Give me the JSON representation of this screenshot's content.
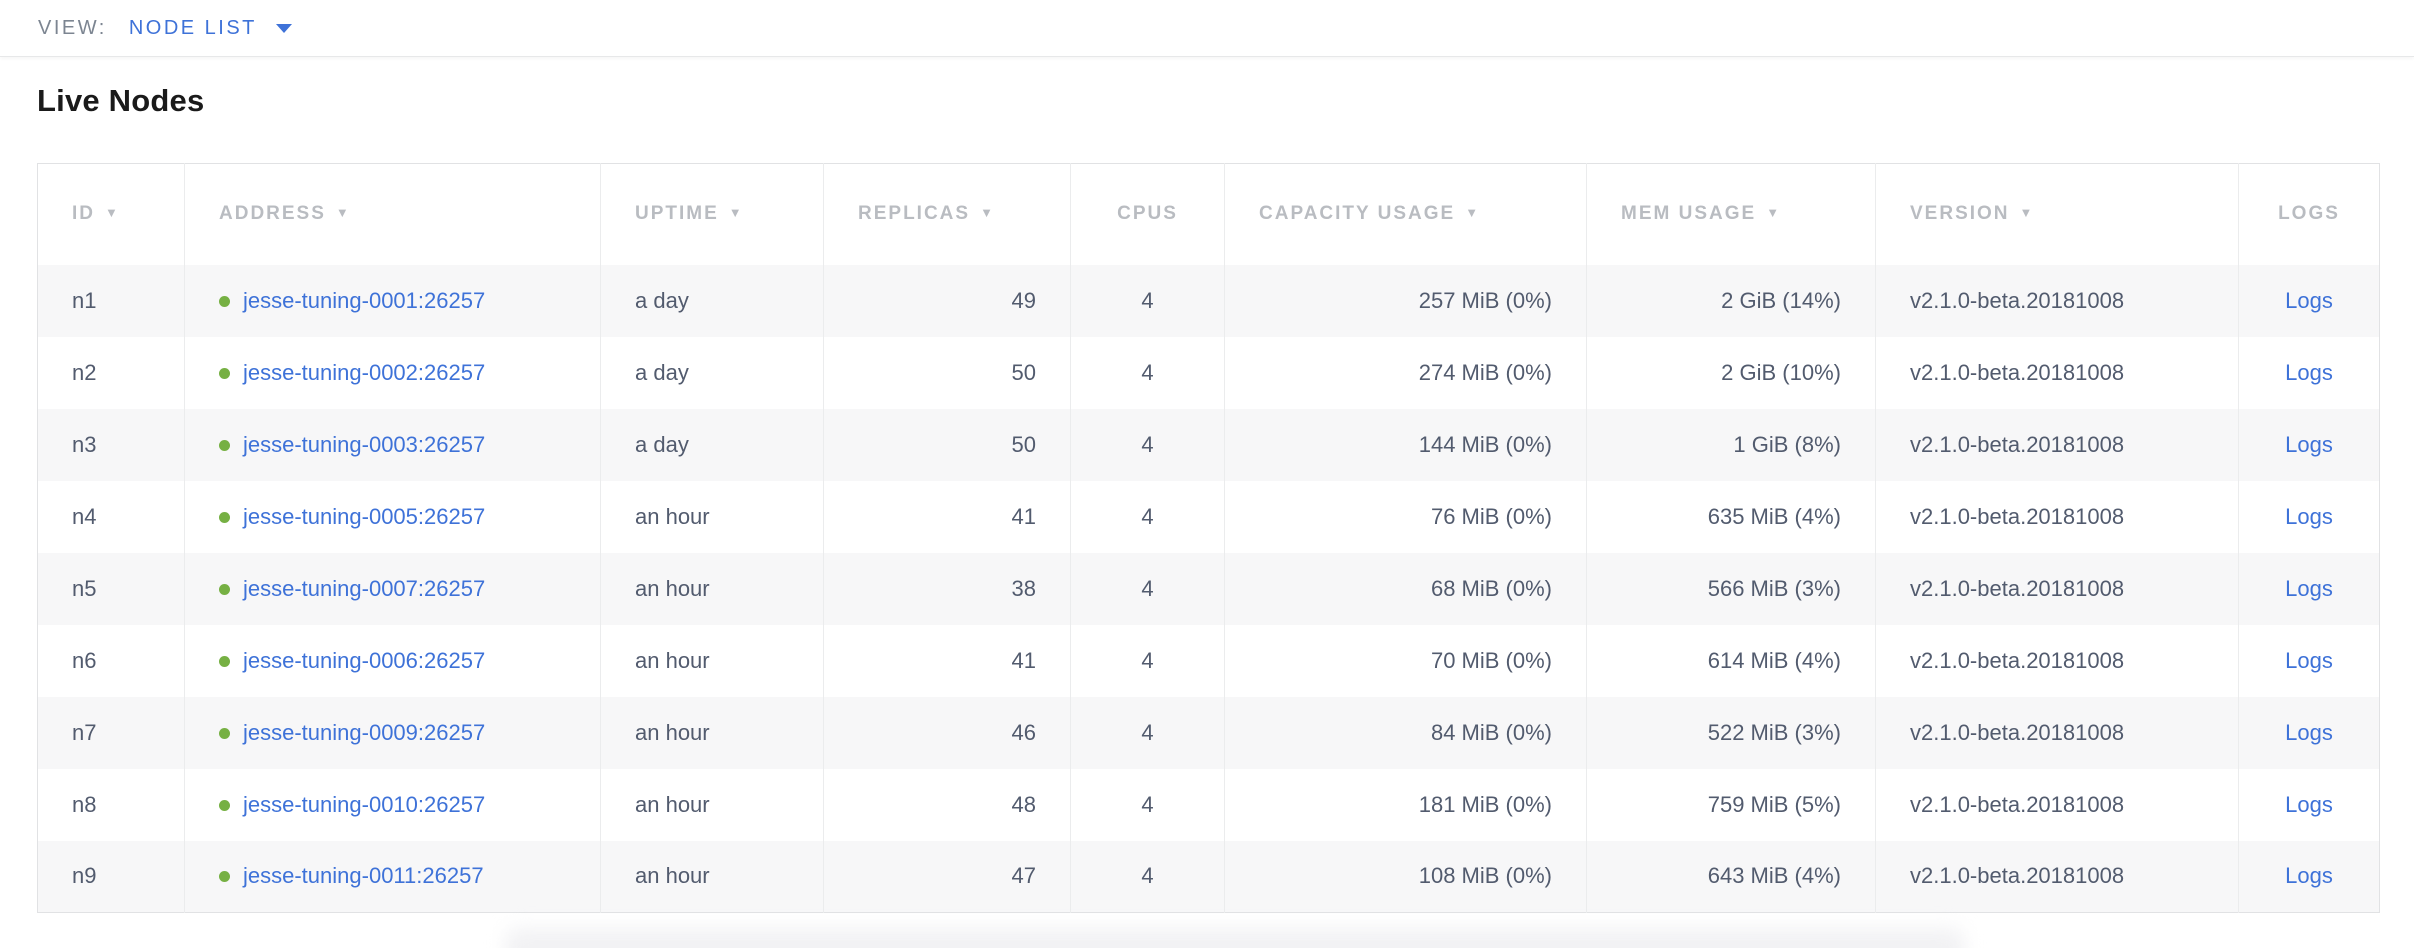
{
  "view_bar": {
    "label": "VIEW:",
    "selected": "NODE LIST"
  },
  "page": {
    "title": "Live Nodes"
  },
  "icons": {
    "sort_arrow": "▼",
    "dropdown_caret": "triangle-down",
    "status_dot": "circle"
  },
  "colors": {
    "accent_blue": "#3e72d8",
    "status_green": "#76b043",
    "header_gray": "#b9bcc1",
    "cell_text": "#525b6e",
    "alt_row_bg": "#f7f7f8"
  },
  "table": {
    "columns": [
      {
        "key": "id",
        "label": "ID",
        "sortable": true
      },
      {
        "key": "address",
        "label": "ADDRESS",
        "sortable": true
      },
      {
        "key": "uptime",
        "label": "UPTIME",
        "sortable": true
      },
      {
        "key": "replicas",
        "label": "REPLICAS",
        "sortable": true
      },
      {
        "key": "cpus",
        "label": "CPUS",
        "sortable": false
      },
      {
        "key": "capacity_usage",
        "label": "CAPACITY USAGE",
        "sortable": true
      },
      {
        "key": "mem_usage",
        "label": "MEM USAGE",
        "sortable": true
      },
      {
        "key": "version",
        "label": "VERSION",
        "sortable": true
      },
      {
        "key": "logs",
        "label": "LOGS",
        "sortable": false
      }
    ],
    "rows": [
      {
        "id": "n1",
        "address": "jesse-tuning-0001:26257",
        "uptime": "a day",
        "replicas": "49",
        "cpus": "4",
        "capacity_usage": "257 MiB (0%)",
        "mem_usage": "2 GiB (14%)",
        "version": "v2.1.0-beta.20181008",
        "logs": "Logs"
      },
      {
        "id": "n2",
        "address": "jesse-tuning-0002:26257",
        "uptime": "a day",
        "replicas": "50",
        "cpus": "4",
        "capacity_usage": "274 MiB (0%)",
        "mem_usage": "2 GiB (10%)",
        "version": "v2.1.0-beta.20181008",
        "logs": "Logs"
      },
      {
        "id": "n3",
        "address": "jesse-tuning-0003:26257",
        "uptime": "a day",
        "replicas": "50",
        "cpus": "4",
        "capacity_usage": "144 MiB (0%)",
        "mem_usage": "1 GiB (8%)",
        "version": "v2.1.0-beta.20181008",
        "logs": "Logs"
      },
      {
        "id": "n4",
        "address": "jesse-tuning-0005:26257",
        "uptime": "an hour",
        "replicas": "41",
        "cpus": "4",
        "capacity_usage": "76 MiB (0%)",
        "mem_usage": "635 MiB (4%)",
        "version": "v2.1.0-beta.20181008",
        "logs": "Logs"
      },
      {
        "id": "n5",
        "address": "jesse-tuning-0007:26257",
        "uptime": "an hour",
        "replicas": "38",
        "cpus": "4",
        "capacity_usage": "68 MiB (0%)",
        "mem_usage": "566 MiB (3%)",
        "version": "v2.1.0-beta.20181008",
        "logs": "Logs"
      },
      {
        "id": "n6",
        "address": "jesse-tuning-0006:26257",
        "uptime": "an hour",
        "replicas": "41",
        "cpus": "4",
        "capacity_usage": "70 MiB (0%)",
        "mem_usage": "614 MiB (4%)",
        "version": "v2.1.0-beta.20181008",
        "logs": "Logs"
      },
      {
        "id": "n7",
        "address": "jesse-tuning-0009:26257",
        "uptime": "an hour",
        "replicas": "46",
        "cpus": "4",
        "capacity_usage": "84 MiB (0%)",
        "mem_usage": "522 MiB (3%)",
        "version": "v2.1.0-beta.20181008",
        "logs": "Logs"
      },
      {
        "id": "n8",
        "address": "jesse-tuning-0010:26257",
        "uptime": "an hour",
        "replicas": "48",
        "cpus": "4",
        "capacity_usage": "181 MiB (0%)",
        "mem_usage": "759 MiB (5%)",
        "version": "v2.1.0-beta.20181008",
        "logs": "Logs"
      },
      {
        "id": "n9",
        "address": "jesse-tuning-0011:26257",
        "uptime": "an hour",
        "replicas": "47",
        "cpus": "4",
        "capacity_usage": "108 MiB (0%)",
        "mem_usage": "643 MiB (4%)",
        "version": "v2.1.0-beta.20181008",
        "logs": "Logs"
      }
    ]
  }
}
